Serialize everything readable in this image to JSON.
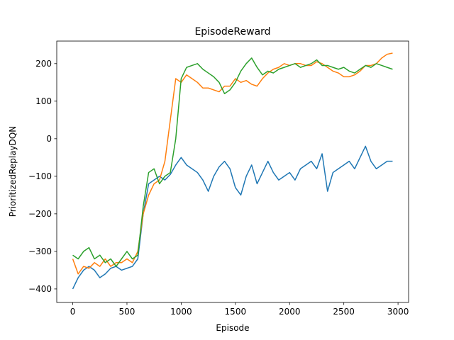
{
  "chart_data": {
    "type": "line",
    "title": "EpisodeReward",
    "x_label": "Episode",
    "y_label": "PrioritizedReplayDQN",
    "x": [
      0,
      50,
      100,
      150,
      200,
      250,
      300,
      350,
      400,
      450,
      500,
      550,
      600,
      650,
      700,
      750,
      800,
      850,
      900,
      950,
      1000,
      1050,
      1100,
      1150,
      1200,
      1250,
      1300,
      1350,
      1400,
      1450,
      1500,
      1550,
      1600,
      1650,
      1700,
      1750,
      1800,
      1850,
      1900,
      1950,
      2000,
      2050,
      2100,
      2150,
      2200,
      2250,
      2300,
      2350,
      2400,
      2450,
      2500,
      2550,
      2600,
      2650,
      2700,
      2750,
      2800,
      2850,
      2900,
      2950
    ],
    "series": [
      {
        "color": "#1f77b4",
        "values": [
          -400,
          -370,
          -350,
          -340,
          -350,
          -370,
          -360,
          -345,
          -340,
          -350,
          -345,
          -340,
          -320,
          -200,
          -120,
          -110,
          -100,
          -110,
          -95,
          -70,
          -50,
          -70,
          -80,
          -90,
          -110,
          -140,
          -100,
          -75,
          -60,
          -80,
          -130,
          -150,
          -100,
          -70,
          -120,
          -90,
          -60,
          -90,
          -110,
          -100,
          -90,
          -110,
          -80,
          -70,
          -60,
          -80,
          -40,
          -140,
          -90,
          -80,
          -70,
          -60,
          -80,
          -50,
          -20,
          -60,
          -80,
          -70,
          -60,
          -60
        ]
      },
      {
        "color": "#ff7f0e",
        "values": [
          -320,
          -360,
          -340,
          -345,
          -330,
          -340,
          -320,
          -340,
          -330,
          -330,
          -320,
          -330,
          -300,
          -200,
          -150,
          -120,
          -110,
          -60,
          50,
          160,
          150,
          170,
          160,
          150,
          135,
          135,
          130,
          125,
          140,
          140,
          160,
          150,
          155,
          145,
          140,
          160,
          175,
          185,
          190,
          200,
          195,
          200,
          200,
          195,
          195,
          205,
          200,
          190,
          180,
          175,
          165,
          165,
          170,
          180,
          195,
          195,
          200,
          215,
          225,
          228
        ]
      },
      {
        "color": "#2ca02c",
        "values": [
          -310,
          -320,
          -300,
          -290,
          -320,
          -310,
          -330,
          -320,
          -340,
          -320,
          -300,
          -320,
          -310,
          -180,
          -90,
          -80,
          -120,
          -100,
          -90,
          0,
          160,
          190,
          195,
          200,
          185,
          175,
          165,
          150,
          120,
          130,
          150,
          180,
          200,
          215,
          190,
          170,
          180,
          175,
          185,
          190,
          195,
          200,
          190,
          195,
          200,
          210,
          195,
          195,
          190,
          185,
          190,
          180,
          175,
          185,
          195,
          190,
          200,
          195,
          190,
          185
        ]
      }
    ],
    "xlim": [
      -147.5,
      3097.5
    ],
    "ylim": [
      -436,
      260
    ],
    "xticks": [
      0,
      500,
      1000,
      1500,
      2000,
      2500,
      3000
    ],
    "yticks": [
      {
        "value": -400,
        "label": "−400"
      },
      {
        "value": -300,
        "label": "−300"
      },
      {
        "value": -200,
        "label": "−200"
      },
      {
        "value": -100,
        "label": "−100"
      },
      0,
      100,
      200
    ]
  }
}
